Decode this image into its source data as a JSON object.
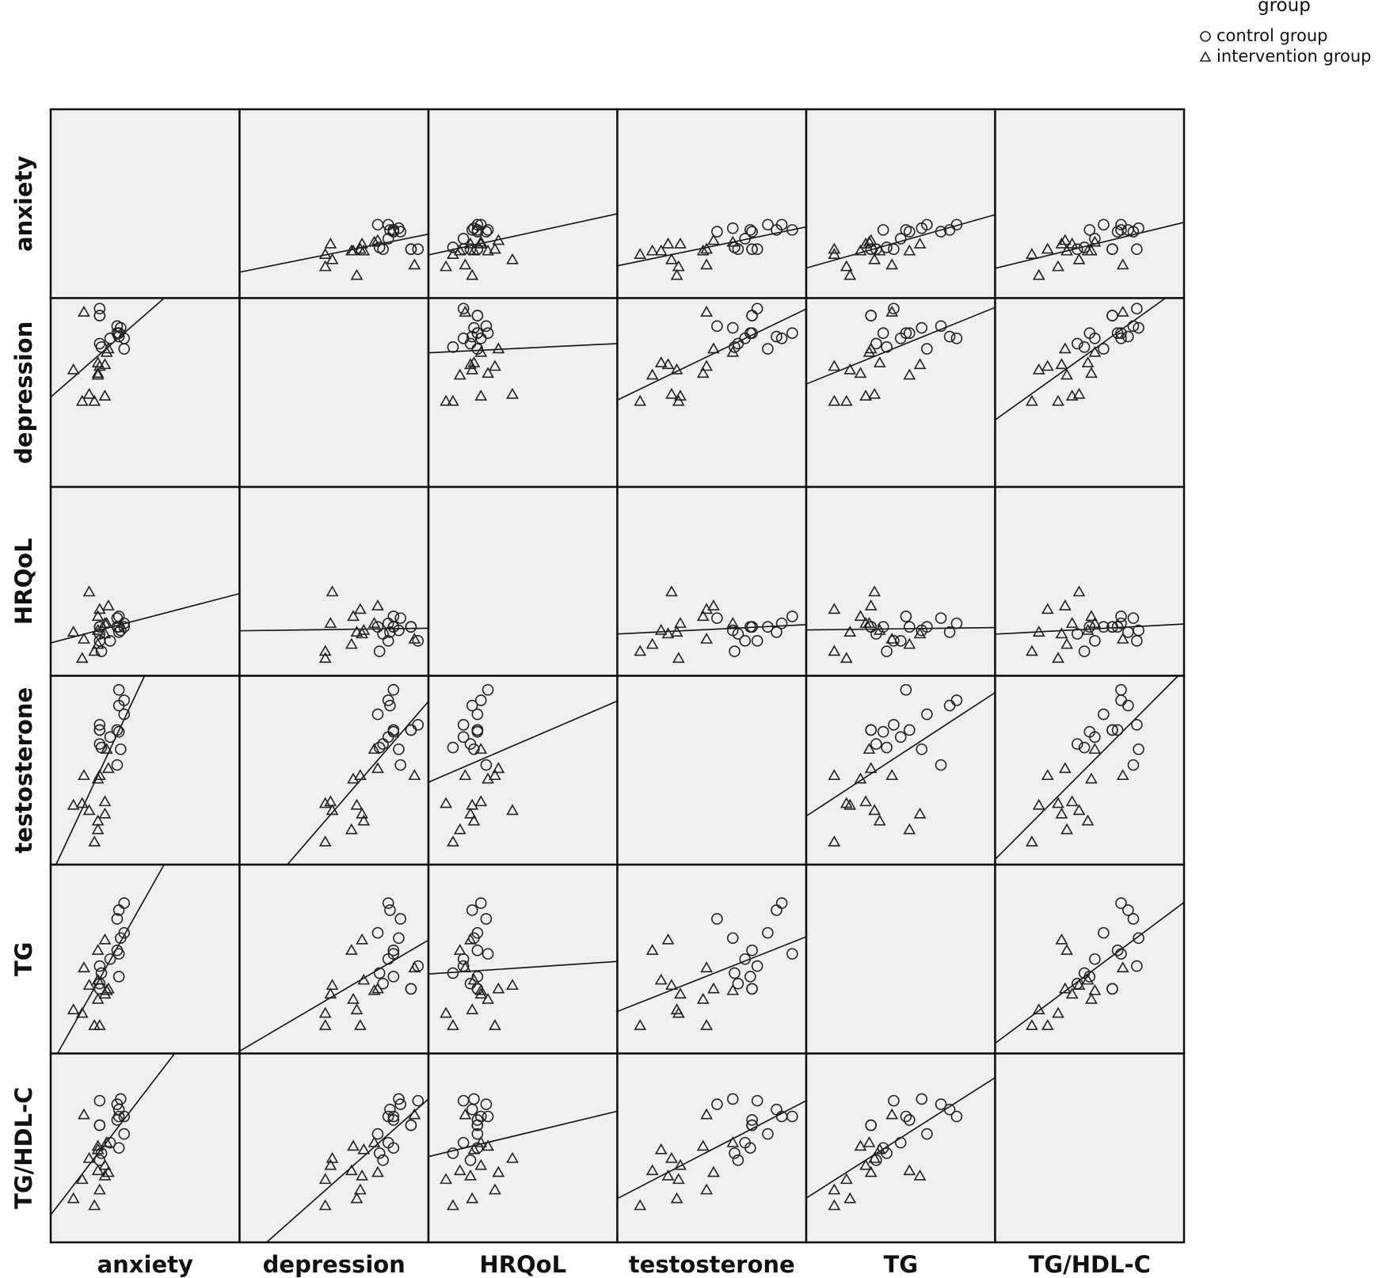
{
  "legend": {
    "title": "group",
    "items": [
      {
        "label": "control group",
        "marker": "circle"
      },
      {
        "label": "intervention group",
        "marker": "triangle"
      }
    ]
  },
  "chart_data": {
    "type": "scatter",
    "subtype": "scatterplot-matrix",
    "variables": [
      "anxiety",
      "depression",
      "HRQoL",
      "testosterone",
      "TG",
      "TG/HDL-C"
    ],
    "grid": false,
    "legend_position": "top-right",
    "fit_lines": "linear, all cases",
    "series": [
      {
        "name": "control group",
        "marker": "circle",
        "points": [
          {
            "anxiety": 2.4,
            "depression": 9.8,
            "HRQoL": 1.6,
            "testosterone": 7.6,
            "TG": 4.6,
            "TG/HDL-C": 7.7
          },
          {
            "anxiety": 2.4,
            "depression": 9.4,
            "HRQoL": 2.4,
            "testosterone": 7.3,
            "TG": 3.3,
            "TG/HDL-C": 6.3
          },
          {
            "anxiety": 2.4,
            "depression": 9.4,
            "HRQoL": 2.4,
            "testosterone": 7.3,
            "TG": 3.3,
            "TG/HDL-C": 6.3
          },
          {
            "anxiety": 3.5,
            "depression": 8.2,
            "HRQoL": 2.1,
            "testosterone": 8.7,
            "TG": 7.8,
            "TG/HDL-C": 7.2
          },
          {
            "anxiety": 3.5,
            "depression": 8.4,
            "HRQoL": 3.0,
            "testosterone": 9.6,
            "TG": 5.3,
            "TG/HDL-C": 6.8
          },
          {
            "anxiety": 2.4,
            "depression": 7.8,
            "HRQoL": 2.0,
            "testosterone": 6.5,
            "TG": 3.6,
            "TG/HDL-C": 4.3
          },
          {
            "anxiety": 2.5,
            "depression": 7.6,
            "HRQoL": 1.0,
            "testosterone": 6.3,
            "TG": 4.2,
            "TG/HDL-C": 4.7
          },
          {
            "anxiety": 3.0,
            "depression": 8.1,
            "HRQoL": 1.6,
            "testosterone": 6.9,
            "TG": 5.0,
            "TG/HDL-C": 5.3
          },
          {
            "anxiety": 3.5,
            "depression": 8.4,
            "HRQoL": 2.4,
            "testosterone": 7.2,
            "TG": 4.0,
            "TG/HDL-C": 5.0
          },
          {
            "anxiety": 3.4,
            "depression": 8.8,
            "HRQoL": 2.9,
            "testosterone": 5.3,
            "TG": 7.3,
            "TG/HDL-C": 7.5
          },
          {
            "anxiety": 3.6,
            "depression": 8.7,
            "HRQoL": 2.2,
            "testosterone": 6.2,
            "TG": 6.2,
            "TG/HDL-C": 7.8
          },
          {
            "anxiety": 3.8,
            "depression": 8.1,
            "HRQoL": 2.6,
            "testosterone": 9.0,
            "TG": 8.2,
            "TG/HDL-C": 6.8
          },
          {
            "anxiety": 3.8,
            "depression": 7.5,
            "HRQoL": 2.4,
            "testosterone": 8.2,
            "TG": 6.5,
            "TG/HDL-C": 5.8
          },
          {
            "anxiety": 3.4,
            "depression": 8.4,
            "HRQoL": 2.4,
            "testosterone": 7.3,
            "TG": 5.5,
            "TG/HDL-C": 6.6
          }
        ]
      },
      {
        "name": "intervention group",
        "marker": "triangle",
        "points": [
          {
            "anxiety": 2.7,
            "depression": 6.6,
            "HRQoL": 2.0,
            "testosterone": 2.5,
            "TG": 6.1,
            "TG/HDL-C": 3.4
          },
          {
            "anxiety": 0.9,
            "depression": 6.3,
            "HRQoL": 2.1,
            "testosterone": 3.0,
            "TG": 2.1,
            "TG/HDL-C": 2.1
          },
          {
            "anxiety": 2.1,
            "depression": 4.5,
            "HRQoL": 1.0,
            "testosterone": 0.9,
            "TG": 1.2,
            "TG/HDL-C": 1.7
          },
          {
            "anxiety": 2.8,
            "depression": 7.3,
            "HRQoL": 2.6,
            "testosterone": 6.2,
            "TG": 3.2,
            "TG/HDL-C": 5.3
          },
          {
            "anxiety": 2.9,
            "depression": 7.5,
            "HRQoL": 3.6,
            "testosterone": 5.1,
            "TG": 3.3,
            "TG/HDL-C": 3.6
          },
          {
            "anxiety": 2.7,
            "depression": 4.8,
            "HRQoL": 2.6,
            "testosterone": 3.2,
            "TG": 3.0,
            "TG/HDL-C": 4.0
          },
          {
            "anxiety": 2.4,
            "depression": 6.5,
            "HRQoL": 3.4,
            "testosterone": 4.7,
            "TG": 1.2,
            "TG/HDL-C": 2.6
          },
          {
            "anxiety": 2.3,
            "depression": 6.1,
            "HRQoL": 3.0,
            "testosterone": 4.5,
            "TG": 2.7,
            "TG/HDL-C": 5.1
          },
          {
            "anxiety": 1.5,
            "depression": 9.6,
            "HRQoL": 1.7,
            "testosterone": 4.7,
            "TG": 4.5,
            "TG/HDL-C": 6.9
          },
          {
            "anxiety": 1.8,
            "depression": 4.9,
            "HRQoL": 4.4,
            "testosterone": 2.7,
            "TG": 3.5,
            "TG/HDL-C": 4.4
          },
          {
            "anxiety": 1.4,
            "depression": 4.5,
            "HRQoL": 0.6,
            "testosterone": 3.1,
            "TG": 1.9,
            "TG/HDL-C": 3.2
          },
          {
            "anxiety": 2.3,
            "depression": 6.0,
            "HRQoL": 1.4,
            "testosterone": 1.6,
            "TG": 5.5,
            "TG/HDL-C": 3.7
          },
          {
            "anxiety": 2.3,
            "depression": 6.7,
            "HRQoL": 2.2,
            "testosterone": 2.1,
            "TG": 3.8,
            "TG/HDL-C": 4.9
          }
        ]
      }
    ]
  }
}
